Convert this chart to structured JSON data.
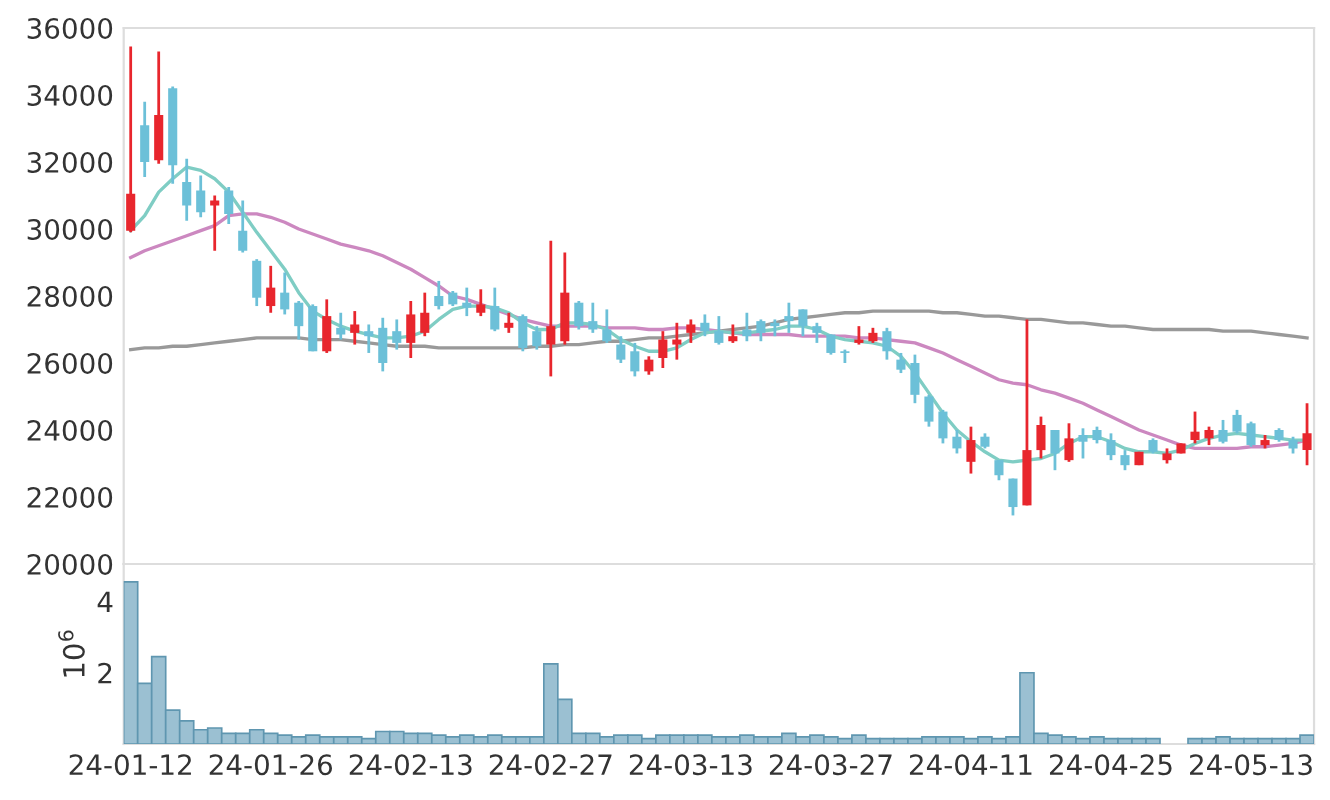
{
  "chart_data": [
    {
      "type": "candlestick",
      "tick_labels": "y",
      "ylim": [
        20000,
        36000
      ],
      "yticks": [
        20000,
        22000,
        24000,
        26000,
        28000,
        30000,
        32000,
        34000,
        36000
      ],
      "legend": false,
      "categories": [
        null,
        null,
        null,
        null,
        null,
        null,
        null,
        null,
        null,
        null,
        null,
        null,
        null,
        null,
        null,
        null,
        null,
        null,
        null,
        null,
        null,
        null,
        null,
        null,
        null,
        null,
        null,
        null,
        null,
        null,
        null,
        null,
        null,
        null,
        null,
        null,
        null,
        null,
        null,
        null,
        null,
        null,
        null,
        null,
        null,
        null,
        null,
        null,
        null,
        null,
        null,
        null,
        null,
        null,
        null,
        null,
        null,
        null,
        null,
        null,
        null,
        null,
        null,
        null,
        null,
        null,
        null,
        null,
        null,
        null,
        null,
        null,
        null,
        null,
        null,
        null,
        null,
        null,
        null,
        null,
        null,
        null,
        null,
        null,
        null
      ],
      "ohlc": [
        [
          29950,
          35450,
          29900,
          31050
        ],
        [
          33100,
          33800,
          31550,
          32000
        ],
        [
          32050,
          35300,
          31950,
          33400
        ],
        [
          34200,
          34250,
          31350,
          31900
        ],
        [
          31400,
          32100,
          30250,
          30700
        ],
        [
          31150,
          31600,
          30350,
          30500
        ],
        [
          30700,
          31000,
          29350,
          30850
        ],
        [
          31150,
          31250,
          30150,
          30450
        ],
        [
          29950,
          30850,
          29300,
          29350
        ],
        [
          29050,
          29100,
          27700,
          27950
        ],
        [
          27700,
          28900,
          27500,
          28250
        ],
        [
          28100,
          28700,
          27450,
          27600
        ],
        [
          27800,
          27850,
          26700,
          27100
        ],
        [
          27700,
          27750,
          26350,
          26350
        ],
        [
          26350,
          27900,
          26300,
          27400
        ],
        [
          27050,
          27500,
          26700,
          26850
        ],
        [
          26900,
          27550,
          26550,
          27150
        ],
        [
          26950,
          27150,
          26300,
          26800
        ],
        [
          27050,
          27350,
          25750,
          26000
        ],
        [
          26950,
          27300,
          26400,
          26600
        ],
        [
          26600,
          27850,
          26150,
          27450
        ],
        [
          26900,
          28100,
          26800,
          27500
        ],
        [
          28000,
          28450,
          27600,
          27700
        ],
        [
          28100,
          28150,
          27700,
          27750
        ],
        [
          27800,
          28250,
          27400,
          27650
        ],
        [
          27500,
          28200,
          27400,
          27750
        ],
        [
          27700,
          28250,
          26950,
          27000
        ],
        [
          27050,
          27500,
          26900,
          27200
        ],
        [
          27400,
          27450,
          26350,
          26450
        ],
        [
          26950,
          27100,
          26400,
          26500
        ],
        [
          26550,
          29650,
          25600,
          27100
        ],
        [
          26650,
          29300,
          26550,
          28100
        ],
        [
          27800,
          27850,
          27000,
          27100
        ],
        [
          27250,
          27800,
          26900,
          27000
        ],
        [
          27000,
          27600,
          26600,
          26650
        ],
        [
          26550,
          26800,
          26000,
          26100
        ],
        [
          26350,
          26600,
          25600,
          25750
        ],
        [
          25750,
          26200,
          25650,
          26100
        ],
        [
          26150,
          26950,
          25850,
          26700
        ],
        [
          26550,
          27200,
          26100,
          26700
        ],
        [
          26900,
          27300,
          26600,
          27150
        ],
        [
          27200,
          27450,
          26800,
          26950
        ],
        [
          26950,
          27400,
          26550,
          26600
        ],
        [
          26650,
          27150,
          26600,
          26800
        ],
        [
          27000,
          27500,
          26650,
          26800
        ],
        [
          27250,
          27300,
          26650,
          26900
        ],
        [
          27200,
          27300,
          26800,
          27100
        ],
        [
          27400,
          27800,
          26900,
          27250
        ],
        [
          27600,
          27600,
          26800,
          27100
        ],
        [
          27100,
          27200,
          26600,
          26900
        ],
        [
          26850,
          26850,
          26250,
          26300
        ],
        [
          26350,
          26400,
          26000,
          26300
        ],
        [
          26600,
          27100,
          26550,
          26700
        ],
        [
          26650,
          27050,
          26600,
          26900
        ],
        [
          26950,
          27050,
          26100,
          26350
        ],
        [
          26100,
          26300,
          25700,
          25800
        ],
        [
          26000,
          26250,
          24800,
          25050
        ],
        [
          25000,
          25050,
          24100,
          24250
        ],
        [
          24550,
          24600,
          23600,
          23750
        ],
        [
          23800,
          24000,
          23300,
          23450
        ],
        [
          23050,
          24100,
          22700,
          23700
        ],
        [
          23800,
          23900,
          23450,
          23500
        ],
        [
          23100,
          23100,
          22500,
          22650
        ],
        [
          22550,
          22550,
          21450,
          21700
        ],
        [
          21750,
          27300,
          21750,
          23400
        ],
        [
          23400,
          24400,
          23150,
          24150
        ],
        [
          24000,
          24000,
          22800,
          23300
        ],
        [
          23100,
          24200,
          23050,
          23750
        ],
        [
          23850,
          24050,
          23150,
          23650
        ],
        [
          24000,
          24100,
          23600,
          23700
        ],
        [
          23700,
          23900,
          23100,
          23250
        ],
        [
          23250,
          23400,
          22800,
          22950
        ],
        [
          22950,
          23350,
          22950,
          23350
        ],
        [
          23700,
          23750,
          23300,
          23350
        ],
        [
          23100,
          23450,
          23000,
          23300
        ],
        [
          23300,
          23600,
          23300,
          23600
        ],
        [
          23700,
          24550,
          23600,
          23950
        ],
        [
          23750,
          24100,
          23550,
          24000
        ],
        [
          24000,
          24300,
          23600,
          23650
        ],
        [
          24450,
          24600,
          23900,
          23950
        ],
        [
          24200,
          24250,
          23500,
          23550
        ],
        [
          23550,
          23850,
          23450,
          23700
        ],
        [
          24000,
          24050,
          23650,
          23700
        ],
        [
          23700,
          23800,
          23300,
          23450
        ],
        [
          23400,
          24800,
          22950,
          23900
        ]
      ],
      "colors": [
        "#e8262d",
        "#6cc0d8",
        "#e8262d",
        "#6cc0d8",
        "#6cc0d8",
        "#6cc0d8",
        "#e8262d",
        "#6cc0d8",
        "#6cc0d8",
        "#6cc0d8",
        "#e8262d",
        "#6cc0d8",
        "#6cc0d8",
        "#6cc0d8",
        "#e8262d",
        "#6cc0d8",
        "#e8262d",
        "#6cc0d8",
        "#6cc0d8",
        "#6cc0d8",
        "#e8262d",
        "#e8262d",
        "#6cc0d8",
        "#6cc0d8",
        "#6cc0d8",
        "#e8262d",
        "#6cc0d8",
        "#e8262d",
        "#6cc0d8",
        "#6cc0d8",
        "#e8262d",
        "#e8262d",
        "#6cc0d8",
        "#6cc0d8",
        "#6cc0d8",
        "#6cc0d8",
        "#6cc0d8",
        "#e8262d",
        "#e8262d",
        "#e8262d",
        "#e8262d",
        "#6cc0d8",
        "#6cc0d8",
        "#e8262d",
        "#6cc0d8",
        "#6cc0d8",
        "#6cc0d8",
        "#6cc0d8",
        "#6cc0d8",
        "#6cc0d8",
        "#6cc0d8",
        "#6cc0d8",
        "#e8262d",
        "#e8262d",
        "#6cc0d8",
        "#6cc0d8",
        "#6cc0d8",
        "#6cc0d8",
        "#6cc0d8",
        "#6cc0d8",
        "#e8262d",
        "#6cc0d8",
        "#6cc0d8",
        "#6cc0d8",
        "#e8262d",
        "#e8262d",
        "#6cc0d8",
        "#e8262d",
        "#6cc0d8",
        "#6cc0d8",
        "#6cc0d8",
        "#6cc0d8",
        "#e8262d",
        "#6cc0d8",
        "#e8262d",
        "#e8262d",
        "#e8262d",
        "#e8262d",
        "#6cc0d8",
        "#6cc0d8",
        "#6cc0d8",
        "#e8262d",
        "#6cc0d8",
        "#6cc0d8",
        "#e8262d"
      ],
      "series": [
        {
          "type": "line",
          "color": "#999999",
          "values": [
            26400,
            26450,
            26450,
            26500,
            26500,
            26550,
            26600,
            26650,
            26700,
            26750,
            26750,
            26750,
            26750,
            26700,
            26700,
            26700,
            26650,
            26600,
            26550,
            26500,
            26500,
            26500,
            26450,
            26450,
            26450,
            26450,
            26450,
            26450,
            26450,
            26500,
            26500,
            26550,
            26550,
            26600,
            26650,
            26650,
            26700,
            26750,
            26750,
            26800,
            26850,
            26900,
            26950,
            27000,
            27050,
            27100,
            27200,
            27300,
            27350,
            27400,
            27450,
            27500,
            27500,
            27550,
            27550,
            27550,
            27550,
            27550,
            27500,
            27500,
            27450,
            27400,
            27400,
            27350,
            27300,
            27300,
            27250,
            27200,
            27200,
            27150,
            27100,
            27100,
            27050,
            27000,
            27000,
            27000,
            27000,
            27000,
            26950,
            26950,
            26950,
            26900,
            26850,
            26800,
            26750
          ]
        },
        {
          "type": "line",
          "color": "#cc88c0",
          "values": [
            29150,
            29350,
            29500,
            29650,
            29800,
            29950,
            30100,
            30400,
            30450,
            30450,
            30350,
            30200,
            30000,
            29850,
            29700,
            29550,
            29450,
            29350,
            29200,
            29000,
            28800,
            28550,
            28300,
            28000,
            27900,
            27750,
            27600,
            27450,
            27300,
            27200,
            27100,
            27100,
            27100,
            27100,
            27050,
            27050,
            27050,
            27000,
            27000,
            27050,
            27050,
            27000,
            26950,
            26900,
            26850,
            26850,
            26850,
            26850,
            26800,
            26800,
            26800,
            26800,
            26750,
            26750,
            26700,
            26650,
            26600,
            26450,
            26300,
            26100,
            25900,
            25700,
            25500,
            25400,
            25350,
            25200,
            25100,
            24950,
            24800,
            24600,
            24400,
            24200,
            24000,
            23850,
            23700,
            23550,
            23450,
            23450,
            23450,
            23450,
            23500,
            23500,
            23550,
            23600,
            23700
          ]
        },
        {
          "type": "line",
          "color": "#7fcdc4",
          "values": [
            29950,
            30400,
            31100,
            31500,
            31850,
            31750,
            31500,
            31100,
            30500,
            29900,
            29350,
            28800,
            28100,
            27550,
            27300,
            27100,
            26950,
            26850,
            26750,
            26750,
            26800,
            26950,
            27300,
            27600,
            27700,
            27700,
            27650,
            27500,
            27200,
            27000,
            27000,
            27200,
            27200,
            27150,
            27000,
            26700,
            26500,
            26350,
            26350,
            26450,
            26700,
            26900,
            26950,
            26900,
            26900,
            26950,
            27000,
            27100,
            27100,
            27000,
            26800,
            26700,
            26650,
            26600,
            26500,
            26200,
            25700,
            25100,
            24500,
            24000,
            23650,
            23350,
            23100,
            23050,
            23100,
            23150,
            23300,
            23600,
            23800,
            23800,
            23650,
            23450,
            23350,
            23350,
            23300,
            23400,
            23600,
            23750,
            23850,
            23900,
            23850,
            23800,
            23750,
            23700,
            23700
          ]
        }
      ]
    },
    {
      "type": "bar",
      "ylabel": "10$^{6}$",
      "ylim": [
        0,
        5.05
      ],
      "yticks": [
        2,
        4
      ],
      "color": "#9bc0d2",
      "legend": false,
      "categories": [
        "24-01-12",
        null,
        null,
        null,
        null,
        null,
        null,
        null,
        null,
        null,
        "24-01-26",
        null,
        null,
        null,
        null,
        null,
        null,
        null,
        null,
        null,
        "24-02-13",
        null,
        null,
        null,
        null,
        null,
        null,
        null,
        null,
        null,
        "24-02-27",
        null,
        null,
        null,
        null,
        null,
        null,
        null,
        null,
        null,
        "24-03-13",
        null,
        null,
        null,
        null,
        null,
        null,
        null,
        null,
        null,
        "24-03-27",
        null,
        null,
        null,
        null,
        null,
        null,
        null,
        null,
        null,
        "24-04-11",
        null,
        null,
        null,
        null,
        null,
        null,
        null,
        null,
        null,
        "24-04-25",
        null,
        null,
        null,
        null,
        null,
        null,
        null,
        null,
        null,
        "24-05-13",
        null,
        null,
        null,
        null
      ],
      "values": [
        4.55,
        1.7,
        2.45,
        0.95,
        0.65,
        0.4,
        0.45,
        0.3,
        0.3,
        0.4,
        0.3,
        0.25,
        0.2,
        0.25,
        0.2,
        0.2,
        0.2,
        0.15,
        0.35,
        0.35,
        0.3,
        0.3,
        0.25,
        0.2,
        0.25,
        0.2,
        0.25,
        0.2,
        0.2,
        0.2,
        2.25,
        1.25,
        0.3,
        0.3,
        0.2,
        0.25,
        0.25,
        0.15,
        0.25,
        0.25,
        0.25,
        0.25,
        0.2,
        0.2,
        0.25,
        0.2,
        0.2,
        0.3,
        0.2,
        0.25,
        0.2,
        0.15,
        0.25,
        0.15,
        0.15,
        0.15,
        0.15,
        0.2,
        0.2,
        0.2,
        0.15,
        0.2,
        0.15,
        0.2,
        2.0,
        0.3,
        0.25,
        0.2,
        0.15,
        0.2,
        0.15,
        0.15,
        0.15,
        0.15,
        0.0,
        0.0,
        0.15,
        0.15,
        0.2,
        0.15,
        0.15,
        0.15,
        0.15,
        0.15,
        0.25
      ]
    }
  ]
}
